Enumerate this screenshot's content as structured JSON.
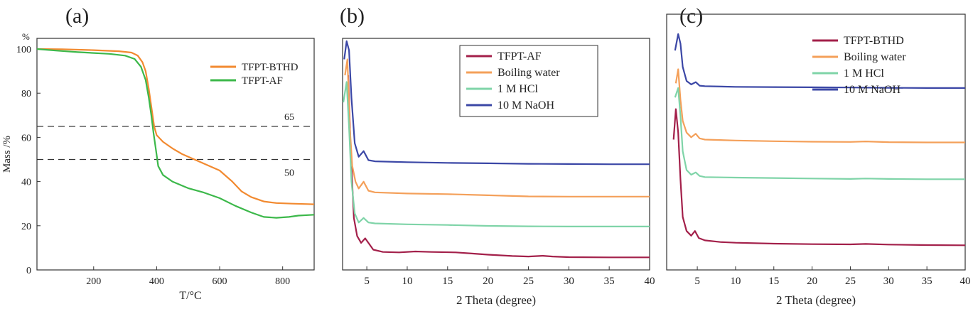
{
  "chart_data": [
    {
      "panel_label": "(a)",
      "type": "line",
      "xlabel": "T/°C",
      "ylabel": "Mass /%",
      "y_unit_mark": "%",
      "xlim": [
        20,
        900
      ],
      "ylim": [
        0,
        100
      ],
      "xticks": [
        200,
        400,
        600,
        800
      ],
      "yticks": [
        0,
        20,
        40,
        60,
        80,
        100
      ],
      "grid": false,
      "legend": "top-right",
      "reference_lines": [
        {
          "y": 65,
          "label": "65"
        },
        {
          "y": 50,
          "label": "50"
        }
      ],
      "series": [
        {
          "name": "TFPT-BTHD",
          "color": "#f28a30",
          "points": [
            [
              20,
              100
            ],
            [
              100,
              99.9
            ],
            [
              200,
              99.5
            ],
            [
              280,
              99.0
            ],
            [
              320,
              98.4
            ],
            [
              340,
              97.0
            ],
            [
              355,
              94.0
            ],
            [
              365,
              90.0
            ],
            [
              375,
              82.0
            ],
            [
              385,
              72.0
            ],
            [
              392,
              65.0
            ],
            [
              400,
              61.0
            ],
            [
              420,
              58.0
            ],
            [
              450,
              55.0
            ],
            [
              480,
              52.5
            ],
            [
              520,
              50.0
            ],
            [
              560,
              47.5
            ],
            [
              600,
              45.0
            ],
            [
              640,
              40.0
            ],
            [
              670,
              35.5
            ],
            [
              700,
              33.0
            ],
            [
              740,
              31.0
            ],
            [
              780,
              30.3
            ],
            [
              830,
              30.0
            ],
            [
              880,
              29.8
            ],
            [
              900,
              29.7
            ]
          ]
        },
        {
          "name": "TFPT-AF",
          "color": "#3cb84a",
          "points": [
            [
              20,
              100
            ],
            [
              80,
              99.3
            ],
            [
              150,
              98.6
            ],
            [
              250,
              97.8
            ],
            [
              300,
              97.0
            ],
            [
              330,
              95.5
            ],
            [
              350,
              92.0
            ],
            [
              365,
              86.0
            ],
            [
              375,
              78.0
            ],
            [
              383,
              70.0
            ],
            [
              390,
              62.0
            ],
            [
              397,
              55.0
            ],
            [
              405,
              47.0
            ],
            [
              420,
              43.0
            ],
            [
              450,
              40.0
            ],
            [
              500,
              37.0
            ],
            [
              550,
              35.0
            ],
            [
              600,
              32.5
            ],
            [
              650,
              29.0
            ],
            [
              700,
              26.0
            ],
            [
              740,
              24.0
            ],
            [
              780,
              23.6
            ],
            [
              820,
              24.0
            ],
            [
              850,
              24.6
            ],
            [
              900,
              25.0
            ]
          ]
        }
      ]
    },
    {
      "panel_label": "(b)",
      "type": "line",
      "xlabel": "2 Theta (degree)",
      "ylabel": "",
      "xlim": [
        2,
        40
      ],
      "xticks": [
        5,
        10,
        15,
        20,
        25,
        30,
        35,
        40
      ],
      "grid": false,
      "legend": "top-right",
      "y_axis_shown": false,
      "series": [
        {
          "name": "TFPT-AF",
          "color": "#a3204a",
          "points": [
            [
              2.7,
              85
            ],
            [
              3.0,
              52
            ],
            [
              3.4,
              22
            ],
            [
              3.8,
              14
            ],
            [
              4.3,
              11
            ],
            [
              4.8,
              13
            ],
            [
              5.3,
              10.5
            ],
            [
              5.8,
              8
            ],
            [
              7,
              7
            ],
            [
              9,
              6.8
            ],
            [
              11,
              7.2
            ],
            [
              13,
              7.0
            ],
            [
              16,
              6.8
            ],
            [
              18,
              6.3
            ],
            [
              20,
              5.8
            ],
            [
              23,
              5.2
            ],
            [
              25,
              5.0
            ],
            [
              26.8,
              5.3
            ],
            [
              28,
              5.0
            ],
            [
              30,
              4.7
            ],
            [
              35,
              4.6
            ],
            [
              40,
              4.6
            ]
          ]
        },
        {
          "name": "Boiling water",
          "color": "#f4a05a",
          "points": [
            [
              2.3,
              85
            ],
            [
              2.6,
              92
            ],
            [
              2.9,
              62
            ],
            [
              3.2,
              45
            ],
            [
              3.6,
              38
            ],
            [
              4.0,
              35
            ],
            [
              4.6,
              38
            ],
            [
              5.2,
              34
            ],
            [
              6,
              33.3
            ],
            [
              10,
              32.8
            ],
            [
              15,
              32.5
            ],
            [
              20,
              32.0
            ],
            [
              25,
              31.5
            ],
            [
              30,
              31.4
            ],
            [
              35,
              31.4
            ],
            [
              40,
              31.4
            ]
          ]
        },
        {
          "name": "1 M HCl",
          "color": "#7fd4a8",
          "points": [
            [
              2.1,
              73
            ],
            [
              2.5,
              82
            ],
            [
              2.8,
              62
            ],
            [
              3.1,
              38
            ],
            [
              3.5,
              24
            ],
            [
              4.0,
              20
            ],
            [
              4.6,
              22
            ],
            [
              5.2,
              20
            ],
            [
              6,
              19.6
            ],
            [
              10,
              19.2
            ],
            [
              15,
              18.9
            ],
            [
              20,
              18.5
            ],
            [
              25,
              18.3
            ],
            [
              30,
              18.2
            ],
            [
              35,
              18.2
            ],
            [
              40,
              18.2
            ]
          ]
        },
        {
          "name": "10 M NaOH",
          "color": "#3b47a6",
          "points": [
            [
              2.2,
              92
            ],
            [
              2.5,
              100
            ],
            [
              2.8,
              96
            ],
            [
              3.1,
              75
            ],
            [
              3.5,
              55
            ],
            [
              4.0,
              49
            ],
            [
              4.6,
              51.5
            ],
            [
              5.2,
              47.5
            ],
            [
              6,
              47
            ],
            [
              10,
              46.6
            ],
            [
              15,
              46.3
            ],
            [
              20,
              46.1
            ],
            [
              25,
              45.9
            ],
            [
              30,
              45.8
            ],
            [
              35,
              45.7
            ],
            [
              40,
              45.7
            ]
          ]
        }
      ]
    },
    {
      "panel_label": "(c)",
      "type": "line",
      "xlabel": "2 Theta (degree)",
      "ylabel": "",
      "xlim": [
        1,
        40
      ],
      "xticks": [
        5,
        10,
        15,
        20,
        25,
        30,
        35,
        40
      ],
      "grid": false,
      "legend": "top-right",
      "y_axis_shown": false,
      "series": [
        {
          "name": "TFPT-BTHD",
          "color": "#a3204a",
          "points": [
            [
              1.9,
              55
            ],
            [
              2.2,
              68
            ],
            [
              2.5,
              58
            ],
            [
              2.8,
              38
            ],
            [
              3.1,
              22
            ],
            [
              3.6,
              16
            ],
            [
              4.2,
              14
            ],
            [
              4.7,
              16
            ],
            [
              5.2,
              13
            ],
            [
              6,
              12
            ],
            [
              8,
              11.3
            ],
            [
              10,
              11
            ],
            [
              15,
              10.6
            ],
            [
              20,
              10.4
            ],
            [
              25,
              10.3
            ],
            [
              27,
              10.5
            ],
            [
              30,
              10.2
            ],
            [
              35,
              10.0
            ],
            [
              40,
              9.9
            ]
          ]
        },
        {
          "name": "Boiling water",
          "color": "#f4a05a",
          "points": [
            [
              2.2,
              79
            ],
            [
              2.5,
              85
            ],
            [
              2.8,
              72
            ],
            [
              3.1,
              63
            ],
            [
              3.6,
              58
            ],
            [
              4.2,
              56
            ],
            [
              4.8,
              57.5
            ],
            [
              5.3,
              55.5
            ],
            [
              6,
              55
            ],
            [
              10,
              54.6
            ],
            [
              15,
              54.3
            ],
            [
              20,
              54.1
            ],
            [
              25,
              54.0
            ],
            [
              27,
              54.2
            ],
            [
              30,
              53.9
            ],
            [
              35,
              53.8
            ],
            [
              40,
              53.8
            ]
          ]
        },
        {
          "name": "1 M HCl",
          "color": "#7fd4a8",
          "points": [
            [
              2.1,
              73
            ],
            [
              2.5,
              77
            ],
            [
              2.8,
              65
            ],
            [
              3.1,
              50
            ],
            [
              3.6,
              42
            ],
            [
              4.2,
              40
            ],
            [
              4.8,
              41
            ],
            [
              5.3,
              39.5
            ],
            [
              6,
              39
            ],
            [
              10,
              38.8
            ],
            [
              15,
              38.6
            ],
            [
              20,
              38.4
            ],
            [
              25,
              38.2
            ],
            [
              27,
              38.4
            ],
            [
              30,
              38.2
            ],
            [
              35,
              38.1
            ],
            [
              40,
              38.1
            ]
          ]
        },
        {
          "name": "10 M NaOH",
          "color": "#3b47a6",
          "points": [
            [
              2.1,
              93
            ],
            [
              2.5,
              100
            ],
            [
              2.8,
              96
            ],
            [
              3.1,
              86
            ],
            [
              3.6,
              80
            ],
            [
              4.2,
              78.5
            ],
            [
              4.8,
              79.5
            ],
            [
              5.3,
              78
            ],
            [
              6,
              77.8
            ],
            [
              10,
              77.5
            ],
            [
              15,
              77.4
            ],
            [
              20,
              77.3
            ],
            [
              25,
              77.2
            ],
            [
              30,
              77.1
            ],
            [
              35,
              77.0
            ],
            [
              40,
              77.0
            ]
          ]
        }
      ]
    }
  ]
}
